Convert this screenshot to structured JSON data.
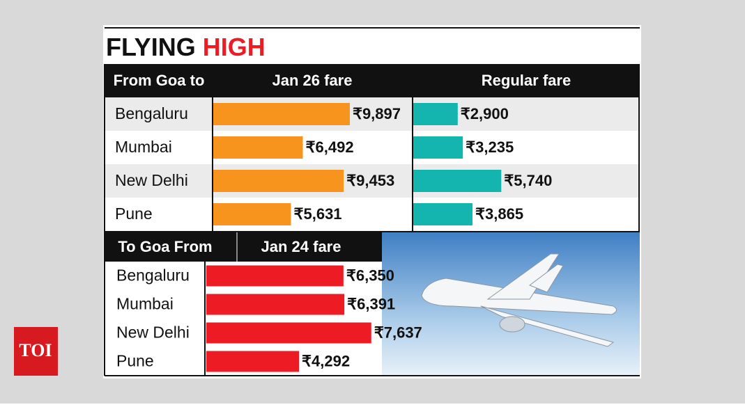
{
  "logo": "TOI",
  "title": [
    "FLYING",
    "HIGH"
  ],
  "chart_data": [
    {
      "type": "bar",
      "xlabel": "From Goa to",
      "title": "Jan 26 fare",
      "categories": [
        "Bengaluru",
        "Mumbai",
        "New Delhi",
        "Pune"
      ],
      "values": [
        9897,
        6492,
        9453,
        5631
      ],
      "value_labels": [
        "₹9,897",
        "₹6,492",
        "₹9,453",
        "₹5,631"
      ],
      "color": "#f7941d"
    },
    {
      "type": "bar",
      "title": "Regular fare",
      "values": [
        2900,
        3235,
        5740,
        3865
      ],
      "value_labels": [
        "₹2,900",
        "₹3,235",
        "₹5,740",
        "₹3,865"
      ],
      "color": "#13b5ae"
    },
    {
      "type": "bar",
      "xlabel": "To Goa From",
      "title": "Jan 24 fare",
      "categories": [
        "Bengaluru",
        "Mumbai",
        "New Delhi",
        "Pune"
      ],
      "values": [
        6350,
        6391,
        7637,
        4292
      ],
      "value_labels": [
        "₹6,350",
        "₹6,391",
        "₹7,637",
        "₹4,292"
      ],
      "color": "#ed1c24"
    }
  ]
}
